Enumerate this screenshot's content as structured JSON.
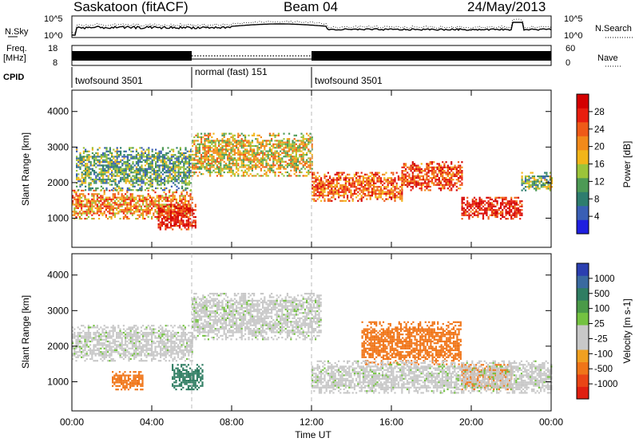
{
  "header": {
    "station": "Saskatoon (fitACF)",
    "beam": "Beam 04",
    "date": "24/May/2013"
  },
  "noise_panel": {
    "left_label": "N.Sky",
    "left_ticks": [
      "10^5",
      "10^0"
    ],
    "right_ticks": [
      "10^5",
      "10^0"
    ],
    "right_label": "N.Search"
  },
  "freq_panel": {
    "left_label_1": "Freq.",
    "left_label_2": "[MHz]",
    "left_ticks": [
      "18",
      "8"
    ],
    "right_ticks": [
      "60",
      "0"
    ],
    "right_label": "Nave"
  },
  "cpid": {
    "label": "CPID",
    "segments": [
      {
        "label": "twofsound 3501",
        "start_h": 0,
        "end_h": 6
      },
      {
        "label": "normal (fast) 151",
        "start_h": 6,
        "end_h": 12
      },
      {
        "label": "twofsound 3501",
        "start_h": 12,
        "end_h": 24
      }
    ]
  },
  "x_axis": {
    "label": "Time UT",
    "ticks": [
      "00:00",
      "04:00",
      "08:00",
      "12:00",
      "16:00",
      "20:00",
      "00:00"
    ],
    "range_h": [
      0,
      24
    ]
  },
  "y_axis": {
    "label": "Slant Range [km]",
    "ticks": [
      "1000",
      "2000",
      "3000",
      "4000"
    ],
    "range_km": [
      180,
      4600
    ]
  },
  "power_colorbar": {
    "label": "Power [dB]",
    "ticks": [
      "4",
      "8",
      "12",
      "16",
      "20",
      "24",
      "28"
    ],
    "colors": [
      "#1f1fe0",
      "#3a5fb5",
      "#2e7d6e",
      "#4d9a55",
      "#9cc43a",
      "#f2b519",
      "#f28a1a",
      "#ef5a17",
      "#e81e0f",
      "#d40000"
    ]
  },
  "velocity_colorbar": {
    "label": "Velocity [m s-1]",
    "ticks": [
      "1000",
      "500",
      "100",
      "25",
      "-25",
      "-100",
      "-500",
      "-1000"
    ],
    "colors": [
      "#2b3fb0",
      "#3a6aa0",
      "#2f7d62",
      "#4a9a48",
      "#74c241",
      "#c8c8c8",
      "#c8c8c8",
      "#f0a020",
      "#f07518",
      "#ea4515",
      "#e01f10"
    ]
  },
  "chart_data": [
    {
      "type": "heatmap",
      "title": "Power [dB]",
      "xlabel": "Time UT",
      "ylabel": "Slant Range [km]",
      "xlim": [
        0,
        24
      ],
      "ylim": [
        180,
        4600
      ],
      "clim": [
        0,
        30
      ],
      "regions": [
        {
          "t0": 0.0,
          "t1": 6.0,
          "r0": 1000,
          "r1": 1800,
          "value": 20
        },
        {
          "t0": 0.2,
          "t1": 6.0,
          "r0": 1800,
          "r1": 3000,
          "value": 10
        },
        {
          "t0": 4.3,
          "t1": 6.2,
          "r0": 700,
          "r1": 1400,
          "value": 27
        },
        {
          "t0": 6.0,
          "t1": 12.0,
          "r0": 2200,
          "r1": 3400,
          "value": 16
        },
        {
          "t0": 12.0,
          "t1": 16.5,
          "r0": 1500,
          "r1": 2300,
          "value": 22
        },
        {
          "t0": 16.5,
          "t1": 19.5,
          "r0": 1800,
          "r1": 2600,
          "value": 24
        },
        {
          "t0": 19.5,
          "t1": 22.5,
          "r0": 1000,
          "r1": 1600,
          "value": 27
        },
        {
          "t0": 22.5,
          "t1": 24.0,
          "r0": 1800,
          "r1": 2300,
          "value": 12
        }
      ]
    },
    {
      "type": "heatmap",
      "title": "Velocity [m s-1]",
      "xlabel": "Time UT",
      "ylabel": "Slant Range [km]",
      "xlim": [
        0,
        24
      ],
      "ylim": [
        180,
        4600
      ],
      "clim": [
        -1000,
        1000
      ],
      "regions": [
        {
          "t0": 0.0,
          "t1": 6.0,
          "r0": 1600,
          "r1": 2600,
          "value": 0
        },
        {
          "t0": 6.0,
          "t1": 12.5,
          "r0": 2200,
          "r1": 3500,
          "value": 0
        },
        {
          "t0": 5.0,
          "t1": 6.5,
          "r0": 800,
          "r1": 1500,
          "value": 200
        },
        {
          "t0": 2.0,
          "t1": 3.5,
          "r0": 800,
          "r1": 1300,
          "value": -150
        },
        {
          "t0": 14.5,
          "t1": 19.5,
          "r0": 1500,
          "r1": 2700,
          "value": -300
        },
        {
          "t0": 19.5,
          "t1": 22.0,
          "r0": 800,
          "r1": 1500,
          "value": -400
        },
        {
          "t0": 12.0,
          "t1": 24.0,
          "r0": 700,
          "r1": 1600,
          "value": 0
        }
      ]
    }
  ]
}
